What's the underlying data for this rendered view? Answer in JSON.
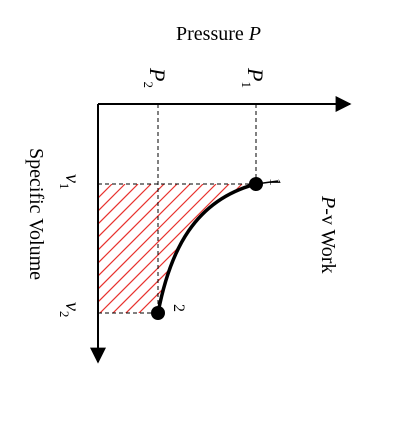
{
  "diagram": {
    "axis_top_label_main": "Pressure ",
    "axis_top_label_var": "P",
    "p1_label": "P",
    "p1_sub": "1",
    "p2_label": "P",
    "p2_sub": "2",
    "axis_left_label": "Specific Volume",
    "v1_label": "v",
    "v1_sub": "1",
    "v2_label": "v",
    "v2_sub": "2",
    "right_label_var": "P",
    "right_label_rest": "-v Work",
    "state1_label": "1",
    "state2_label": "2",
    "colors": {
      "line": "#000000",
      "hatch": "#e8322e"
    }
  }
}
